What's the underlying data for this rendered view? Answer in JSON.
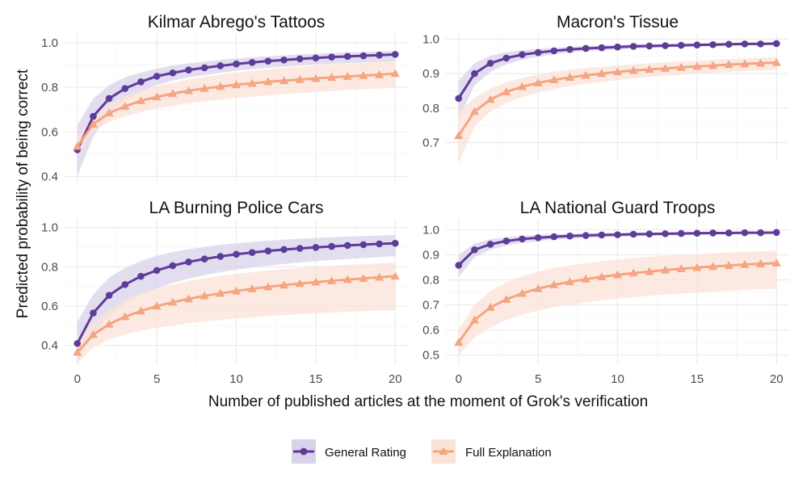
{
  "colors": {
    "general": "#5E3C99",
    "general_band": "#D9D3EA",
    "full": "#F4A582",
    "full_band": "#FBE3D8"
  },
  "chart_data": {
    "type": "line",
    "xlabel": "Number of published articles at the moment of Grok's verification",
    "ylabel": "Predicted probability of being correct",
    "x": [
      0,
      1,
      2,
      3,
      4,
      5,
      6,
      7,
      8,
      9,
      10,
      11,
      12,
      13,
      14,
      15,
      16,
      17,
      18,
      19,
      20
    ],
    "xticks": [
      0,
      5,
      10,
      15,
      20
    ],
    "xlim": [
      -0.8,
      20.8
    ],
    "legend": {
      "position": "bottom",
      "entries": [
        {
          "name": "General Rating",
          "marker": "circle"
        },
        {
          "name": "Full Explanation",
          "marker": "triangle"
        }
      ]
    },
    "panels": [
      {
        "title": "Kilmar Abrego's Tattoos",
        "ylim": [
          0.38,
          1.04
        ],
        "yticks": [
          0.4,
          0.6,
          0.8,
          1.0
        ],
        "ytick_labels": [
          "0.4",
          "0.6",
          "0.8",
          "1.0"
        ],
        "series": [
          {
            "name": "General Rating",
            "values": [
              0.52,
              0.67,
              0.75,
              0.795,
              0.825,
              0.85,
              0.865,
              0.878,
              0.888,
              0.897,
              0.905,
              0.912,
              0.918,
              0.923,
              0.928,
              0.932,
              0.936,
              0.939,
              0.942,
              0.945,
              0.948
            ],
            "lower": [
              0.4,
              0.58,
              0.68,
              0.74,
              0.78,
              0.81,
              0.83,
              0.845,
              0.855,
              0.865,
              0.875,
              0.882,
              0.888,
              0.893,
              0.898,
              0.902,
              0.906,
              0.909,
              0.912,
              0.915,
              0.918
            ],
            "upper": [
              0.63,
              0.75,
              0.81,
              0.845,
              0.867,
              0.885,
              0.898,
              0.908,
              0.916,
              0.923,
              0.93,
              0.935,
              0.94,
              0.944,
              0.948,
              0.951,
              0.954,
              0.957,
              0.959,
              0.962,
              0.964
            ]
          },
          {
            "name": "Full Explanation",
            "values": [
              0.535,
              0.635,
              0.685,
              0.715,
              0.74,
              0.757,
              0.772,
              0.785,
              0.795,
              0.804,
              0.812,
              0.818,
              0.825,
              0.83,
              0.835,
              0.84,
              0.845,
              0.849,
              0.853,
              0.857,
              0.862
            ],
            "lower": [
              0.49,
              0.6,
              0.645,
              0.67,
              0.69,
              0.705,
              0.717,
              0.728,
              0.737,
              0.745,
              0.752,
              0.758,
              0.764,
              0.769,
              0.774,
              0.779,
              0.783,
              0.787,
              0.791,
              0.795,
              0.798
            ],
            "upper": [
              0.58,
              0.67,
              0.725,
              0.76,
              0.787,
              0.806,
              0.822,
              0.836,
              0.848,
              0.858,
              0.867,
              0.875,
              0.882,
              0.888,
              0.893,
              0.898,
              0.903,
              0.907,
              0.911,
              0.915,
              0.918
            ]
          }
        ]
      },
      {
        "title": "Macron's Tissue",
        "ylim": [
          0.645,
          1.015
        ],
        "yticks": [
          0.7,
          0.8,
          0.9,
          1.0
        ],
        "ytick_labels": [
          "0.7",
          "0.8",
          "0.9",
          "1.0"
        ],
        "series": [
          {
            "name": "General Rating",
            "values": [
              0.828,
              0.9,
              0.93,
              0.945,
              0.955,
              0.961,
              0.966,
              0.97,
              0.973,
              0.975,
              0.977,
              0.979,
              0.98,
              0.981,
              0.982,
              0.983,
              0.984,
              0.985,
              0.986,
              0.986,
              0.987
            ],
            "lower": [
              0.77,
              0.865,
              0.905,
              0.927,
              0.94,
              0.949,
              0.956,
              0.961,
              0.965,
              0.968,
              0.97,
              0.972,
              0.974,
              0.976,
              0.977,
              0.978,
              0.979,
              0.98,
              0.981,
              0.982,
              0.983
            ],
            "upper": [
              0.88,
              0.93,
              0.952,
              0.962,
              0.968,
              0.972,
              0.975,
              0.978,
              0.98,
              0.982,
              0.983,
              0.985,
              0.986,
              0.987,
              0.988,
              0.988,
              0.989,
              0.99,
              0.99,
              0.991,
              0.991
            ]
          },
          {
            "name": "Full Explanation",
            "values": [
              0.72,
              0.79,
              0.825,
              0.847,
              0.862,
              0.873,
              0.882,
              0.889,
              0.895,
              0.9,
              0.905,
              0.909,
              0.912,
              0.915,
              0.918,
              0.921,
              0.923,
              0.926,
              0.928,
              0.93,
              0.932
            ],
            "lower": [
              0.64,
              0.745,
              0.79,
              0.815,
              0.832,
              0.845,
              0.855,
              0.863,
              0.87,
              0.876,
              0.881,
              0.886,
              0.89,
              0.893,
              0.897,
              0.9,
              0.902,
              0.905,
              0.907,
              0.909,
              0.911
            ],
            "upper": [
              0.79,
              0.83,
              0.857,
              0.875,
              0.888,
              0.897,
              0.905,
              0.911,
              0.916,
              0.92,
              0.924,
              0.927,
              0.93,
              0.933,
              0.935,
              0.937,
              0.94,
              0.942,
              0.944,
              0.946,
              0.948
            ]
          }
        ]
      },
      {
        "title": "LA Burning Police Cars",
        "ylim": [
          0.3,
          1.04
        ],
        "yticks": [
          0.4,
          0.6,
          0.8,
          1.0
        ],
        "ytick_labels": [
          "0.4",
          "0.6",
          "0.8",
          "1.0"
        ],
        "series": [
          {
            "name": "General Rating",
            "values": [
              0.41,
              0.565,
              0.655,
              0.71,
              0.752,
              0.782,
              0.806,
              0.825,
              0.84,
              0.853,
              0.864,
              0.873,
              0.881,
              0.888,
              0.894,
              0.899,
              0.904,
              0.909,
              0.913,
              0.917,
              0.92
            ],
            "lower": [
              0.31,
              0.46,
              0.55,
              0.61,
              0.655,
              0.69,
              0.718,
              0.74,
              0.758,
              0.773,
              0.786,
              0.797,
              0.806,
              0.815,
              0.822,
              0.829,
              0.835,
              0.84,
              0.845,
              0.85,
              0.854
            ],
            "upper": [
              0.52,
              0.66,
              0.745,
              0.795,
              0.83,
              0.856,
              0.875,
              0.89,
              0.902,
              0.912,
              0.92,
              0.927,
              0.933,
              0.938,
              0.943,
              0.947,
              0.951,
              0.954,
              0.957,
              0.96,
              0.962
            ]
          },
          {
            "name": "Full Explanation",
            "values": [
              0.365,
              0.455,
              0.508,
              0.546,
              0.575,
              0.6,
              0.62,
              0.637,
              0.652,
              0.665,
              0.677,
              0.688,
              0.698,
              0.707,
              0.715,
              0.722,
              0.729,
              0.735,
              0.741,
              0.747,
              0.752
            ],
            "lower": [
              0.31,
              0.39,
              0.43,
              0.455,
              0.475,
              0.49,
              0.502,
              0.513,
              0.522,
              0.53,
              0.537,
              0.543,
              0.549,
              0.554,
              0.559,
              0.563,
              0.567,
              0.571,
              0.574,
              0.577,
              0.58
            ],
            "upper": [
              0.43,
              0.52,
              0.58,
              0.63,
              0.665,
              0.69,
              0.71,
              0.728,
              0.742,
              0.754,
              0.764,
              0.773,
              0.781,
              0.788,
              0.794,
              0.8,
              0.805,
              0.81,
              0.814,
              0.818,
              0.822
            ]
          }
        ]
      },
      {
        "title": "LA National Guard Troops",
        "ylim": [
          0.46,
          1.04
        ],
        "yticks": [
          0.5,
          0.6,
          0.7,
          0.8,
          0.9,
          1.0
        ],
        "ytick_labels": [
          "0.5",
          "0.6",
          "0.7",
          "0.8",
          "0.9",
          "1.0"
        ],
        "series": [
          {
            "name": "General Rating",
            "values": [
              0.858,
              0.92,
              0.942,
              0.955,
              0.963,
              0.968,
              0.972,
              0.975,
              0.977,
              0.979,
              0.98,
              0.982,
              0.983,
              0.984,
              0.985,
              0.986,
              0.987,
              0.987,
              0.988,
              0.988,
              0.989
            ],
            "lower": [
              0.81,
              0.89,
              0.92,
              0.937,
              0.948,
              0.955,
              0.96,
              0.964,
              0.967,
              0.97,
              0.972,
              0.974,
              0.975,
              0.977,
              0.978,
              0.979,
              0.98,
              0.981,
              0.981,
              0.982,
              0.983
            ],
            "upper": [
              0.9,
              0.945,
              0.962,
              0.97,
              0.976,
              0.979,
              0.982,
              0.984,
              0.985,
              0.987,
              0.988,
              0.989,
              0.989,
              0.99,
              0.991,
              0.991,
              0.992,
              0.992,
              0.993,
              0.993,
              0.993
            ]
          },
          {
            "name": "Full Explanation",
            "values": [
              0.55,
              0.64,
              0.69,
              0.722,
              0.746,
              0.765,
              0.78,
              0.792,
              0.803,
              0.812,
              0.82,
              0.827,
              0.833,
              0.839,
              0.844,
              0.849,
              0.853,
              0.857,
              0.861,
              0.864,
              0.867
            ],
            "lower": [
              0.5,
              0.57,
              0.61,
              0.64,
              0.66,
              0.677,
              0.69,
              0.701,
              0.71,
              0.718,
              0.725,
              0.731,
              0.736,
              0.741,
              0.745,
              0.749,
              0.753,
              0.756,
              0.76,
              0.762,
              0.765
            ],
            "upper": [
              0.6,
              0.7,
              0.755,
              0.79,
              0.815,
              0.833,
              0.847,
              0.858,
              0.867,
              0.875,
              0.881,
              0.887,
              0.892,
              0.896,
              0.9,
              0.903,
              0.906,
              0.909,
              0.912,
              0.914,
              0.916
            ]
          }
        ]
      }
    ]
  }
}
